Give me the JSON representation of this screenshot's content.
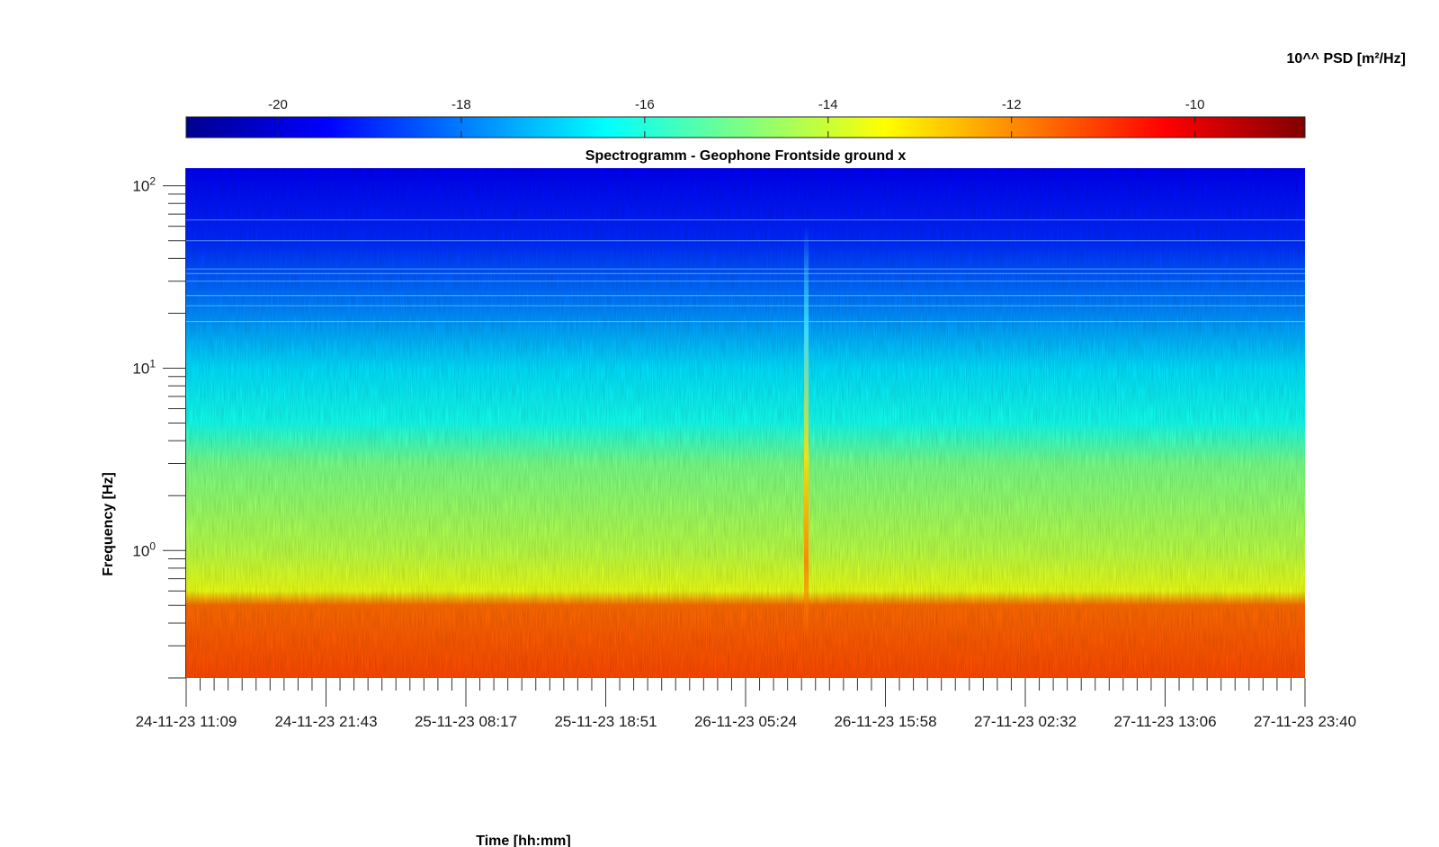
{
  "chart_data": {
    "type": "heatmap",
    "title": "Spectrogramm - Geophone Frontside ground x",
    "xlabel": "Time [hh:mm]",
    "ylabel": "Frequency [Hz]",
    "x_tick_labels": [
      "24-11-23 11:09",
      "24-11-23 21:43",
      "25-11-23 08:17",
      "25-11-23 18:51",
      "26-11-23 05:24",
      "26-11-23 15:58",
      "27-11-23 02:32",
      "27-11-23 13:06",
      "27-11-23 23:40"
    ],
    "x_range": [
      "24-11-23 11:09",
      "27-11-23 23:40"
    ],
    "y_scale": "log",
    "y_range": [
      0.2,
      125
    ],
    "y_ticks": [
      {
        "base": "10",
        "exp": "0",
        "value": 1
      },
      {
        "base": "10",
        "exp": "1",
        "value": 10
      },
      {
        "base": "10",
        "exp": "2",
        "value": 100
      }
    ],
    "colorbar": {
      "label": "10^^ PSD [m²/Hz]",
      "position": "top",
      "colormap": "jet",
      "range": [
        -21,
        -8.8
      ],
      "tick_labels": [
        "-20",
        "-18",
        "-16",
        "-14",
        "-12",
        "-10"
      ],
      "tick_values": [
        -20,
        -18,
        -16,
        -14,
        -12,
        -10
      ]
    },
    "spectral_levels": [
      {
        "freq": 0.2,
        "value": -11.2
      },
      {
        "freq": 0.5,
        "value": -11.6
      },
      {
        "freq": 0.6,
        "value": -13.6
      },
      {
        "freq": 1,
        "value": -14.2
      },
      {
        "freq": 3,
        "value": -15.0
      },
      {
        "freq": 5,
        "value": -16.2
      },
      {
        "freq": 10,
        "value": -16.8
      },
      {
        "freq": 20,
        "value": -17.8
      },
      {
        "freq": 50,
        "value": -19.0
      },
      {
        "freq": 125,
        "value": -19.6
      }
    ],
    "events": [
      {
        "time": "26-11-23 10:00",
        "freq_range": [
          0.3,
          60
        ],
        "peak_value": -12.5
      }
    ]
  }
}
